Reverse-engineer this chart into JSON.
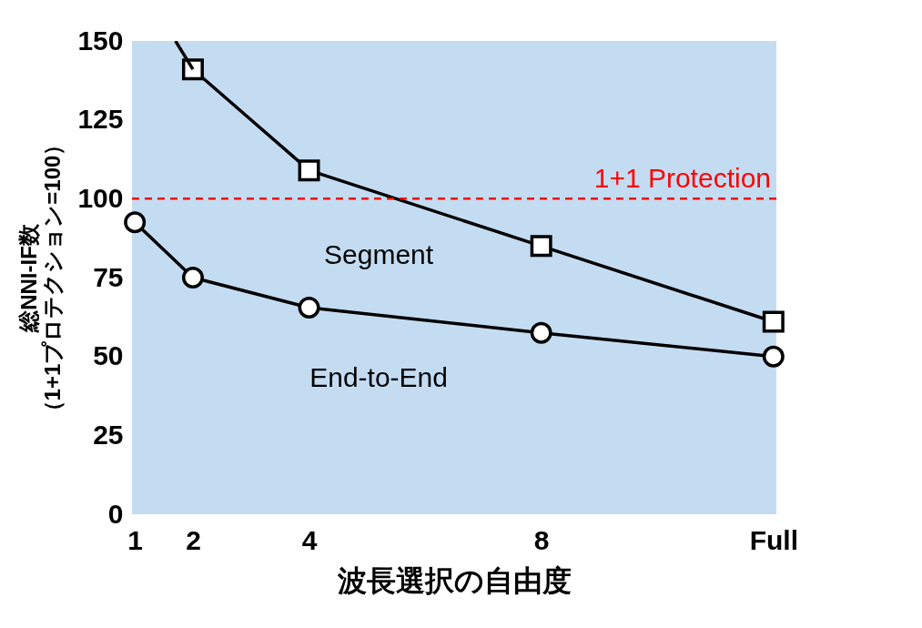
{
  "chart_data": {
    "type": "line",
    "xlabel": "波長選択の自由度",
    "ylabel": [
      "総NNI-IF数",
      "（1+1プロテクション=100）"
    ],
    "xlim": [
      0.95,
      12.05
    ],
    "xticks": [
      1,
      2,
      4,
      8,
      {
        "value": 12,
        "label": "Full"
      }
    ],
    "ylim": [
      0,
      150
    ],
    "yticks": [
      0,
      25,
      50,
      75,
      100,
      125,
      150
    ],
    "grid": false,
    "series": [
      {
        "name": "Segment",
        "color": "#000000",
        "marker": "square",
        "x": [
          2,
          4,
          8,
          12
        ],
        "values": [
          141,
          109,
          85,
          61
        ]
      },
      {
        "color": "#000000",
        "marker": "none",
        "x": [
          1.7,
          2
        ],
        "values": [
          150,
          141
        ]
      },
      {
        "name": "End-to-End",
        "color": "#000000",
        "marker": "circle",
        "x": [
          1,
          2,
          4,
          8,
          12
        ],
        "values": [
          92.5,
          75,
          65.5,
          57.5,
          50
        ]
      }
    ],
    "ref_lines": [
      {
        "axis": "y",
        "value": 100,
        "label": "1+1 Protection",
        "color": "#ff0000",
        "line_style": "dashed"
      }
    ]
  }
}
